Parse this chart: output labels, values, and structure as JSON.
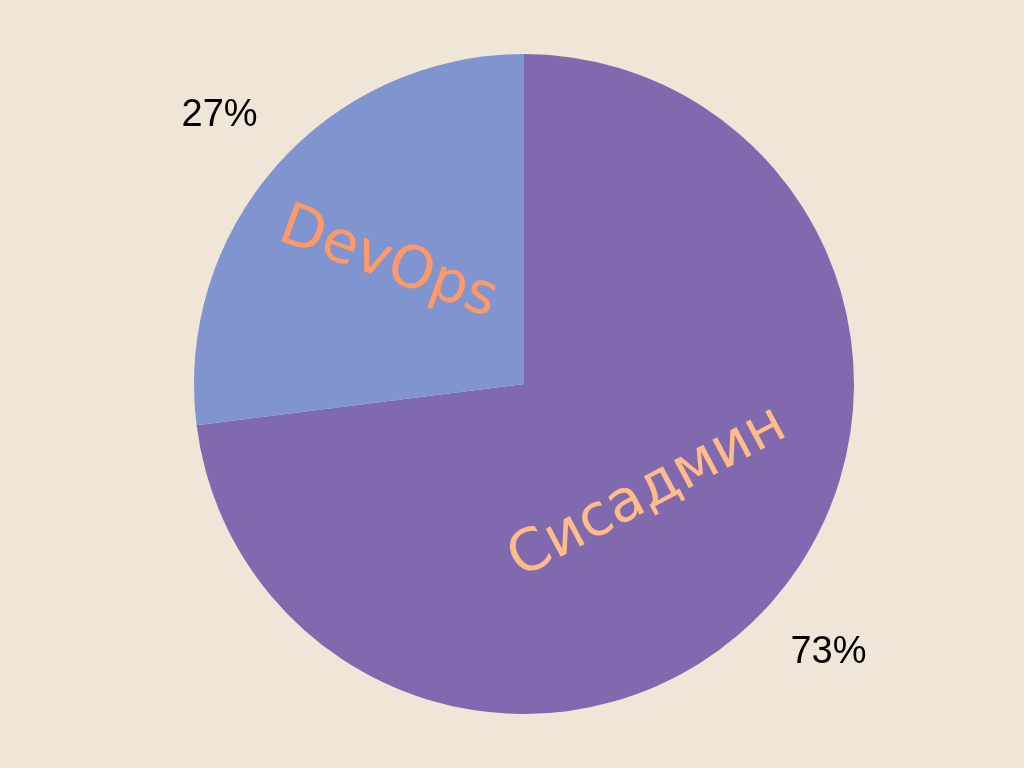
{
  "chart_data": {
    "type": "pie",
    "categories": [
      "Сисадмин",
      "DevOps"
    ],
    "values": [
      73,
      27
    ],
    "colors": [
      "#8169b0",
      "#8094d0"
    ],
    "value_labels": [
      "73%",
      "27%"
    ],
    "legend": false
  }
}
